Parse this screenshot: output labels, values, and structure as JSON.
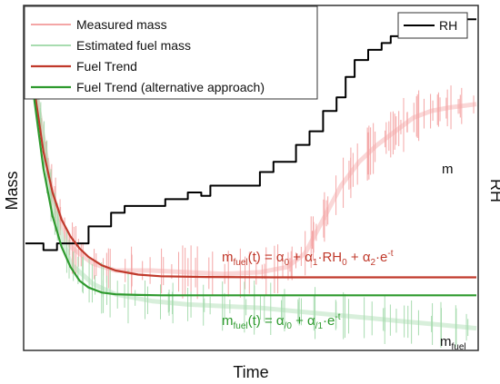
{
  "chart_data": {
    "type": "line",
    "title": "",
    "xlabel": "Time",
    "ylabel_left": "Mass",
    "ylabel_right": "RH",
    "x_range": [
      0,
      100
    ],
    "y_range": [
      0,
      100
    ],
    "grid": false,
    "ticks": false,
    "legend_left": {
      "placement": "top-left",
      "entries": [
        {
          "label": "Measured mass",
          "color": "#f4a6a6"
        },
        {
          "label": "Estimated fuel mass",
          "color": "#a8dcb0"
        },
        {
          "label": "Fuel Trend",
          "color": "#c0392b"
        },
        {
          "label": "Fuel Trend (alternative approach)",
          "color": "#2e9a2e"
        }
      ]
    },
    "legend_right": {
      "placement": "top-right",
      "entries": [
        {
          "label": "RH",
          "color": "#000000"
        }
      ]
    },
    "annotations": {
      "m_label": "m",
      "m_fuel_main": "m",
      "m_fuel_sub": "fuel",
      "formula_red": {
        "m": "m",
        "fuel": "fuel",
        "eq": "(t) = ",
        "a0": "α",
        "s0": "0",
        "plus1": " + ",
        "a1": "α",
        "s1": "1",
        "rh": "·RH",
        "rhs": "0",
        "plus2": " + ",
        "a2": "α",
        "s2": "2",
        "exp": "·e",
        "expsup": "-t"
      },
      "formula_green": {
        "m": "m",
        "fuel": "fuel",
        "eq": "(t) = ",
        "a0": "α",
        "s0": "/0",
        "plus1": " + ",
        "a1": "α",
        "s1": "/1",
        "exp": "·e",
        "expsup": "-t"
      }
    },
    "series": [
      {
        "name": "RH",
        "color": "#000000",
        "x": [
          0,
          4,
          4,
          7,
          7,
          14,
          14,
          19,
          19,
          22,
          22,
          31,
          31,
          36,
          36,
          39,
          39,
          41,
          41,
          52,
          52,
          55,
          55,
          60,
          60,
          63,
          63,
          66,
          66,
          69,
          69,
          71,
          71,
          73,
          73,
          76,
          76,
          79,
          79,
          81,
          81,
          84,
          84,
          87,
          87,
          89,
          89,
          91,
          91,
          94,
          94,
          97,
          97,
          100
        ],
        "values": [
          31,
          31,
          29,
          29,
          31,
          31,
          36,
          36,
          40,
          40,
          42,
          42,
          44,
          44,
          46,
          46,
          45,
          45,
          48,
          48,
          52,
          52,
          55,
          55,
          60,
          60,
          64,
          64,
          70,
          70,
          74,
          74,
          80,
          80,
          85,
          85,
          88,
          88,
          90,
          90,
          92,
          92,
          94,
          94,
          93,
          93,
          97,
          97,
          96,
          96,
          98,
          98,
          97,
          97
        ]
      },
      {
        "name": "Fuel Trend",
        "color": "#c0392b",
        "x": [
          0,
          2,
          4,
          6,
          8,
          10,
          12,
          14,
          17,
          20,
          25,
          30,
          40,
          55,
          70,
          85,
          100
        ],
        "values": [
          100,
          76,
          58,
          46,
          38,
          33,
          29.5,
          27,
          24.5,
          23,
          21.8,
          21.3,
          21.1,
          21,
          21,
          21,
          21
        ]
      },
      {
        "name": "Fuel Trend (alternative approach)",
        "color": "#2e9a2e",
        "x": [
          0,
          2,
          4,
          6,
          8,
          10,
          12,
          14,
          17,
          20,
          25,
          30,
          40,
          55,
          70,
          85,
          100
        ],
        "values": [
          100,
          73,
          53,
          39,
          30,
          24,
          20,
          18,
          16.5,
          16,
          15.8,
          15.7,
          15.7,
          15.7,
          15.7,
          15.7,
          15.7
        ]
      },
      {
        "name": "Measured mass",
        "color": "#f4a6a6",
        "x": [
          0,
          3,
          6,
          10,
          15,
          20,
          28,
          36,
          44,
          52,
          58,
          62,
          66,
          70,
          74,
          78,
          82,
          86,
          90,
          94,
          100
        ],
        "values": [
          95,
          70,
          45,
          30,
          25,
          23,
          23,
          22.5,
          22,
          22.5,
          24,
          28,
          38,
          48,
          55,
          60,
          64,
          68,
          70,
          71,
          72
        ]
      },
      {
        "name": "Estimated fuel mass",
        "color": "#a8dcb0",
        "x": [
          0,
          3,
          6,
          10,
          15,
          20,
          28,
          36,
          44,
          52,
          60,
          68,
          76,
          84,
          92,
          100
        ],
        "values": [
          95,
          70,
          42,
          25,
          19,
          16,
          14,
          13,
          12.5,
          12,
          11,
          10,
          9,
          8,
          7,
          6
        ]
      }
    ]
  }
}
